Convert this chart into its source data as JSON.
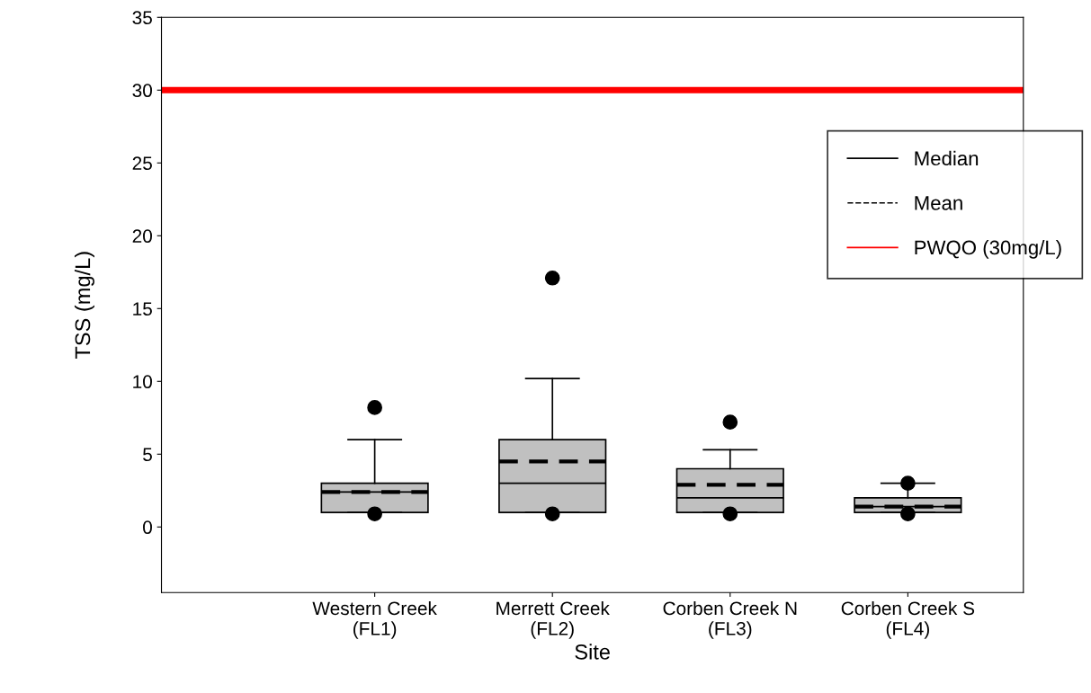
{
  "chart_data": {
    "type": "box",
    "xlabel": "Site",
    "ylabel": "TSS (mg/L)",
    "categories": [
      "Western Creek\n(FL1)",
      "Merrett Creek\n(FL2)",
      "Corben Creek N\n(FL3)",
      "Corben Creek S\n(FL4)"
    ],
    "color": "#c0c0c0",
    "boxes": [
      {
        "low": 1,
        "q1": 1,
        "median": 2.4,
        "q3": 3,
        "high": 6,
        "mean": 2.4,
        "outliers": [
          0.9,
          8.2
        ]
      },
      {
        "low": 1,
        "q1": 1,
        "median": 3,
        "q3": 6,
        "high": 10.2,
        "mean": 4.5,
        "outliers": [
          0.9,
          17.1
        ]
      },
      {
        "low": 1,
        "q1": 1,
        "median": 2,
        "q3": 4,
        "high": 5.3,
        "mean": 2.9,
        "outliers": [
          0.9,
          7.2
        ]
      },
      {
        "low": 1,
        "q1": 1,
        "median": 1.4,
        "q3": 2,
        "high": 3,
        "mean": 1.4,
        "outliers": [
          0.9,
          3
        ]
      }
    ],
    "ylim": [
      -4.5,
      35
    ],
    "yticks": [
      0,
      5,
      10,
      15,
      20,
      25,
      30,
      35
    ],
    "ref_lines": [
      {
        "axis": "y",
        "value": 30,
        "label": "PWQO (30mg/L)",
        "color": "#ff0000"
      }
    ],
    "annotations": [
      "Median",
      "Mean"
    ],
    "legend": "right",
    "grid": false
  }
}
